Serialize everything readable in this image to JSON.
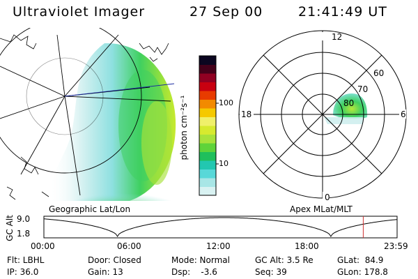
{
  "header": {
    "instrument": "Ultraviolet Imager",
    "date": "27 Sep 00",
    "time": "21:41:49 UT"
  },
  "left_panel": {
    "caption": "Geographic Lat/Lon"
  },
  "right_panel": {
    "caption": "Apex MLat/MLT",
    "mlt_labels": {
      "top": "12",
      "left": "18",
      "right": "6",
      "bottom": "0"
    },
    "lat_labels": [
      "60",
      "70",
      "80"
    ]
  },
  "colorbar": {
    "label": "photon cm⁻²s⁻¹",
    "ticks": [
      "100",
      "10"
    ],
    "colors": [
      "#d9f2f2",
      "#a8e6e6",
      "#58d8d8",
      "#22c7b0",
      "#1fbf5c",
      "#5fd33a",
      "#a8e23b",
      "#d7ea2f",
      "#f0f06a",
      "#f5c900",
      "#f28a00",
      "#e83b00",
      "#c80010",
      "#900022",
      "#44001a",
      "#0b0620"
    ]
  },
  "altitude_plot": {
    "ylabel": "GC Alt",
    "yticks": [
      "9.0",
      "1.8"
    ],
    "xticks": [
      "00:00",
      "06:00",
      "12:00",
      "18:00",
      "23:59"
    ],
    "current_marker_hours": 21.7,
    "marker_color": "#d03030"
  },
  "info": {
    "filter": "Flt: LBHL",
    "ip": "IP: 36.0",
    "door": "Door: Closed",
    "gain": "Gain: 13",
    "mode": "Mode: Normal",
    "dsp": "Dsp:    -3.6",
    "gcalt": "GC Alt: 3.5 Re",
    "seq": "Seq: 39",
    "glat": "GLat:  84.9",
    "glon": "GLon: 178.8"
  }
}
